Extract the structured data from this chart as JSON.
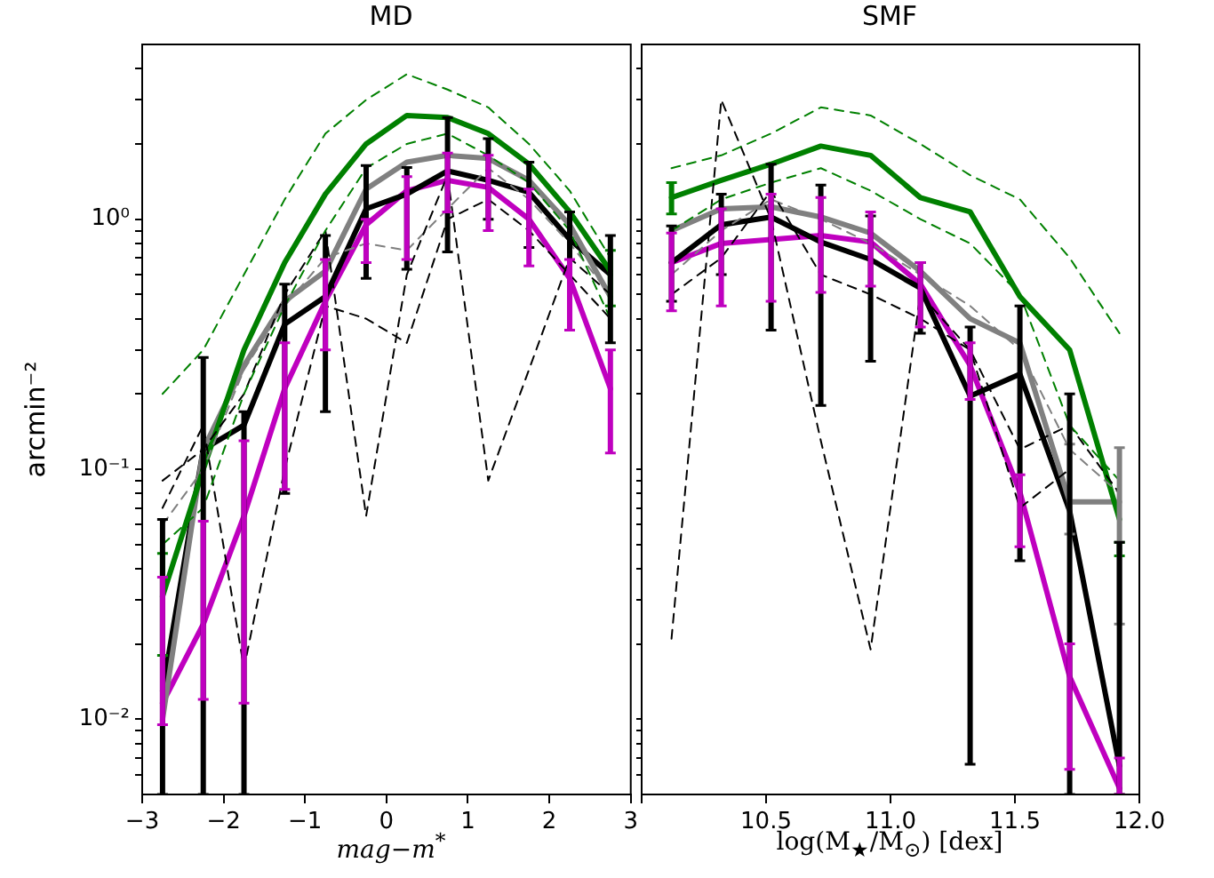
{
  "chart_data": [
    {
      "type": "line",
      "title": "MD",
      "xlabel": "mag−m$^{*}$",
      "ylabel": "arcmin⁻²",
      "log": "y",
      "legend": false,
      "marker": "none",
      "x": [
        -2.75,
        -2.25,
        -1.75,
        -1.25,
        -0.75,
        -0.25,
        0.25,
        0.75,
        1.25,
        1.75,
        2.25,
        2.75
      ],
      "xlim": [
        -3,
        3
      ],
      "xticks": [
        {
          "value": -3,
          "label": "−3"
        },
        {
          "value": -2,
          "label": "−2"
        },
        {
          "value": -1,
          "label": "−1"
        },
        0,
        1,
        2,
        3
      ],
      "ylim": [
        0.005,
        5
      ],
      "yticks": [
        {
          "value": 0.006,
          "label": null
        },
        {
          "value": 0.007,
          "label": null
        },
        {
          "value": 0.008,
          "label": null
        },
        {
          "value": 0.009,
          "label": null
        },
        {
          "value": 0.01,
          "label": "10⁻²"
        },
        {
          "value": 0.02,
          "label": null
        },
        {
          "value": 0.03,
          "label": null
        },
        {
          "value": 0.04,
          "label": null
        },
        {
          "value": 0.05,
          "label": null
        },
        {
          "value": 0.06,
          "label": null
        },
        {
          "value": 0.07,
          "label": null
        },
        {
          "value": 0.08,
          "label": null
        },
        {
          "value": 0.09,
          "label": null
        },
        {
          "value": 0.1,
          "label": "10⁻¹"
        },
        {
          "value": 0.2,
          "label": null
        },
        {
          "value": 0.3,
          "label": null
        },
        {
          "value": 0.4,
          "label": null
        },
        {
          "value": 0.5,
          "label": null
        },
        {
          "value": 0.6,
          "label": null
        },
        {
          "value": 0.7,
          "label": null
        },
        {
          "value": 0.8,
          "label": null
        },
        {
          "value": 0.9,
          "label": null
        },
        {
          "value": 1,
          "label": "10⁰"
        },
        {
          "value": 2,
          "label": null
        },
        {
          "value": 3,
          "label": null
        },
        {
          "value": 4,
          "label": null
        }
      ],
      "series": [
        {
          "color": "#008000",
          "line_style": "dashed",
          "values": [
            0.2,
            0.3,
            0.6,
            1.2,
            2.2,
            3.0,
            3.8,
            3.3,
            2.8,
            2.0,
            1.3,
            0.7
          ]
        },
        {
          "color": "#008000",
          "line_style": "dashed",
          "values": [
            0.05,
            0.07,
            0.2,
            0.45,
            0.9,
            1.6,
            2.0,
            2.2,
            1.8,
            1.4,
            0.9,
            0.4
          ]
        },
        {
          "color": "#000000",
          "line_style": "dashed",
          "values": [
            0.09,
            0.12,
            0.2,
            0.5,
            0.9,
            0.065,
            0.6,
            1.5,
            0.09,
            0.25,
            0.7,
            0.5
          ]
        },
        {
          "color": "#000000",
          "line_style": "dashed",
          "values": [
            0.07,
            0.15,
            0.016,
            0.1,
            0.45,
            0.4,
            0.32,
            1.0,
            1.2,
            0.9,
            0.6,
            0.4
          ]
        },
        {
          "color": "#808080",
          "line_style": "dashed",
          "values": [
            0.06,
            0.1,
            0.25,
            0.45,
            0.7,
            0.8,
            0.75,
            1.1,
            1.6,
            1.2,
            0.8,
            0.5
          ]
        },
        {
          "color": "#008000",
          "line_style": "solid",
          "values": [
            0.031,
            0.1,
            0.3,
            0.67,
            1.26,
            2.0,
            2.6,
            2.55,
            2.2,
            1.66,
            1.07,
            0.62
          ],
          "errors": [
            [
              0.018,
              0.046
            ],
            null,
            null,
            null,
            null,
            null,
            null,
            null,
            null,
            null,
            null,
            [
              0.45,
              0.75
            ]
          ]
        },
        {
          "color": "#808080",
          "line_style": "solid",
          "values": [
            0.01,
            0.12,
            0.26,
            0.47,
            0.62,
            1.32,
            1.69,
            1.8,
            1.75,
            1.43,
            0.95,
            0.49
          ]
        },
        {
          "color": "#000000",
          "line_style": "solid",
          "values": [
            0.013,
            0.12,
            0.15,
            0.38,
            0.49,
            1.1,
            1.26,
            1.56,
            1.43,
            1.28,
            0.83,
            0.6
          ],
          "errors": [
            [
              0.005,
              0.063
            ],
            [
              0.005,
              0.28
            ],
            [
              0.005,
              0.17
            ],
            [
              0.08,
              0.55
            ],
            [
              0.17,
              0.86
            ],
            [
              0.58,
              1.64
            ],
            [
              0.63,
              1.61
            ],
            [
              0.74,
              2.55
            ],
            [
              1.0,
              2.1
            ],
            [
              0.77,
              1.69
            ],
            [
              0.36,
              1.07
            ],
            [
              0.32,
              0.86
            ]
          ]
        },
        {
          "color": "#bf00bf",
          "line_style": "solid",
          "values": [
            0.0116,
            0.024,
            0.065,
            0.21,
            0.47,
            0.95,
            1.3,
            1.43,
            1.34,
            1.0,
            0.58,
            0.21
          ],
          "errors": [
            [
              0.0095,
              0.037
            ],
            [
              0.012,
              0.062
            ],
            [
              0.0116,
              0.13
            ],
            [
              0.083,
              0.32
            ],
            [
              0.3,
              0.69
            ],
            [
              0.67,
              1.0
            ],
            [
              0.69,
              1.48
            ],
            [
              1.07,
              1.84
            ],
            [
              0.9,
              1.8
            ],
            [
              0.65,
              1.32
            ],
            [
              0.36,
              0.69
            ],
            [
              0.116,
              0.3
            ]
          ]
        }
      ]
    },
    {
      "type": "line",
      "title": "SMF",
      "xlabel": "log(M$_{★}$/M$_{⊙}$) [dex]",
      "log": "y",
      "legend": false,
      "marker": "none",
      "tick_labels": "x",
      "x": [
        10.12,
        10.32,
        10.52,
        10.72,
        10.92,
        11.12,
        11.32,
        11.52,
        11.72,
        11.92
      ],
      "xlim": [
        10,
        12
      ],
      "xticks": [
        {
          "value": 10,
          "label": null
        },
        10.5,
        {
          "value": 11,
          "label": "11.0"
        },
        11.5,
        {
          "value": 12,
          "label": "12.0"
        }
      ],
      "ylim": [
        0.005,
        5
      ],
      "yticks": [
        {
          "value": 0.006,
          "label": null
        },
        {
          "value": 0.007,
          "label": null
        },
        {
          "value": 0.008,
          "label": null
        },
        {
          "value": 0.009,
          "label": null
        },
        {
          "value": 0.01,
          "label": null
        },
        {
          "value": 0.02,
          "label": null
        },
        {
          "value": 0.03,
          "label": null
        },
        {
          "value": 0.04,
          "label": null
        },
        {
          "value": 0.05,
          "label": null
        },
        {
          "value": 0.06,
          "label": null
        },
        {
          "value": 0.07,
          "label": null
        },
        {
          "value": 0.08,
          "label": null
        },
        {
          "value": 0.09,
          "label": null
        },
        {
          "value": 0.1,
          "label": null
        },
        {
          "value": 0.2,
          "label": null
        },
        {
          "value": 0.3,
          "label": null
        },
        {
          "value": 0.4,
          "label": null
        },
        {
          "value": 0.5,
          "label": null
        },
        {
          "value": 0.6,
          "label": null
        },
        {
          "value": 0.7,
          "label": null
        },
        {
          "value": 0.8,
          "label": null
        },
        {
          "value": 0.9,
          "label": null
        },
        {
          "value": 1,
          "label": null
        },
        {
          "value": 2,
          "label": null
        },
        {
          "value": 3,
          "label": null
        },
        {
          "value": 4,
          "label": null
        }
      ],
      "series": [
        {
          "color": "#008000",
          "line_style": "dashed",
          "values": [
            1.6,
            1.8,
            2.2,
            2.8,
            2.6,
            2.0,
            1.5,
            1.2,
            0.7,
            0.35
          ]
        },
        {
          "color": "#008000",
          "line_style": "dashed",
          "values": [
            0.9,
            1.2,
            1.4,
            1.6,
            1.3,
            1.0,
            0.8,
            0.5,
            0.15,
            0.09
          ]
        },
        {
          "color": "#000000",
          "line_style": "dashed",
          "values": [
            0.021,
            3.0,
            1.0,
            0.13,
            0.019,
            0.5,
            0.3,
            0.07,
            0.1,
            null
          ]
        },
        {
          "color": "#000000",
          "line_style": "dashed",
          "values": [
            0.5,
            0.7,
            1.3,
            0.6,
            0.5,
            0.4,
            0.3,
            0.12,
            0.15,
            0.08
          ]
        },
        {
          "color": "#808080",
          "line_style": "dashed",
          "values": [
            0.6,
            0.9,
            1.2,
            1.0,
            0.8,
            0.6,
            0.45,
            0.3,
            0.12,
            0.08
          ]
        },
        {
          "color": "#008000",
          "line_style": "solid",
          "values": [
            1.22,
            1.43,
            1.66,
            1.96,
            1.8,
            1.22,
            1.07,
            0.49,
            0.3,
            0.063
          ],
          "errors": [
            [
              1.05,
              1.4
            ],
            null,
            null,
            null,
            null,
            null,
            null,
            null,
            null,
            [
              0.045,
              0.051
            ]
          ]
        },
        {
          "color": "#808080",
          "line_style": "solid",
          "values": [
            0.9,
            1.1,
            1.12,
            1.02,
            0.88,
            0.62,
            0.4,
            0.32,
            0.074,
            0.074
          ],
          "errors": [
            null,
            null,
            null,
            null,
            null,
            null,
            null,
            null,
            [
              0.055,
              0.126
            ],
            [
              0.024,
              0.122
            ]
          ]
        },
        {
          "color": "#000000",
          "line_style": "solid",
          "values": [
            0.67,
            0.95,
            1.02,
            0.81,
            0.69,
            0.53,
            0.196,
            0.24,
            0.068,
            0.0065
          ],
          "errors": [
            [
              0.47,
              0.94
            ],
            [
              0.6,
              1.26
            ],
            [
              0.36,
              1.66
            ],
            [
              0.18,
              1.37
            ],
            [
              0.27,
              1.03
            ],
            [
              0.35,
              0.67
            ],
            [
              0.0066,
              0.37
            ],
            [
              0.043,
              0.45
            ],
            [
              0.005,
              0.2
            ],
            [
              0.005,
              0.051
            ]
          ]
        },
        {
          "color": "#bf00bf",
          "line_style": "solid",
          "values": [
            0.67,
            0.8,
            0.83,
            0.86,
            0.81,
            0.55,
            0.26,
            0.081,
            0.0148,
            0.0053
          ],
          "errors": [
            [
              0.43,
              0.88
            ],
            [
              0.45,
              1.1
            ],
            [
              0.47,
              1.26
            ],
            [
              0.51,
              1.22
            ],
            [
              0.54,
              1.07
            ],
            [
              0.37,
              0.67
            ],
            [
              0.19,
              0.32
            ],
            [
              0.049,
              0.095
            ],
            [
              0.0063,
              0.02
            ],
            [
              0.005,
              0.007
            ]
          ]
        }
      ]
    }
  ]
}
